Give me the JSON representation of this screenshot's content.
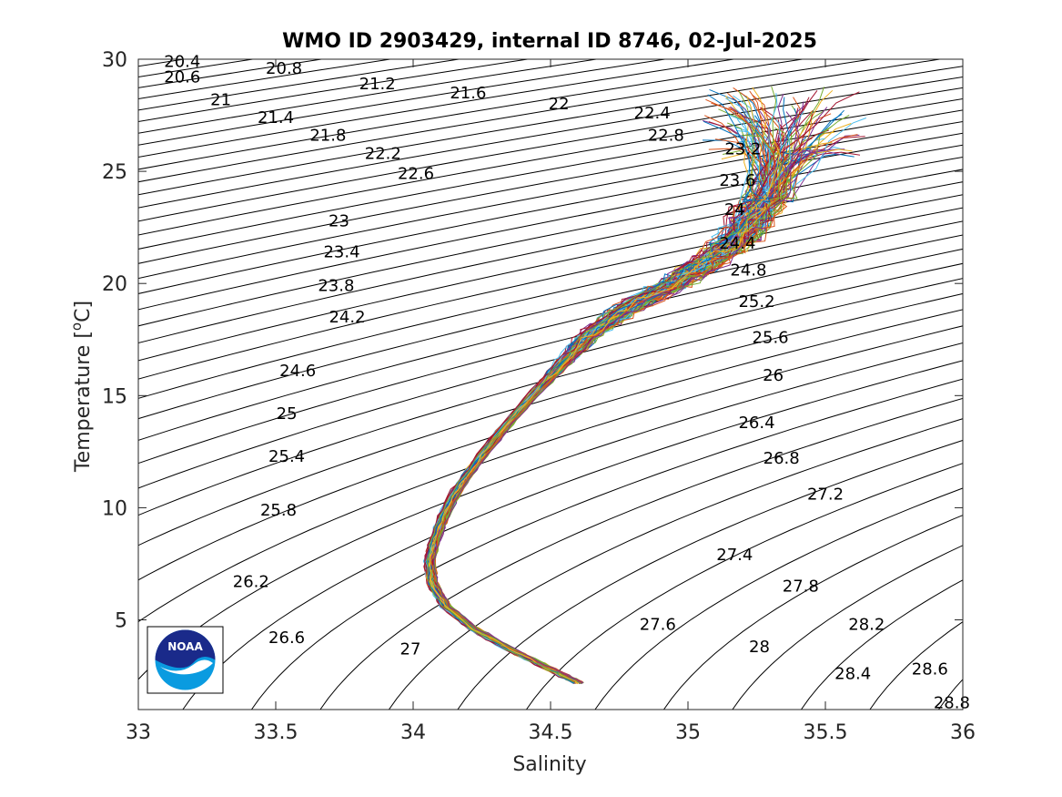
{
  "chart_data": {
    "type": "line",
    "title": "WMO ID 2903429, internal ID 8746, 02-Jul-2025",
    "xlabel": "Salinity",
    "ylabel_main": "Temperature [",
    "ylabel_sup": "o",
    "ylabel_end": "C]",
    "xlim": [
      33,
      36
    ],
    "ylim": [
      1,
      30
    ],
    "xticks": [
      "33",
      "33.5",
      "34",
      "34.5",
      "35",
      "35.5",
      "36"
    ],
    "yticks": [
      "5",
      "10",
      "15",
      "20",
      "25",
      "30"
    ],
    "isopycnal_labels": [
      {
        "text": "20.4",
        "s": 33.16,
        "t": 29.9
      },
      {
        "text": "20.6",
        "s": 33.16,
        "t": 29.2
      },
      {
        "text": "20.8",
        "s": 33.53,
        "t": 29.6
      },
      {
        "text": "21",
        "s": 33.3,
        "t": 28.2
      },
      {
        "text": "21.2",
        "s": 33.87,
        "t": 28.9
      },
      {
        "text": "21.4",
        "s": 33.5,
        "t": 27.4
      },
      {
        "text": "21.6",
        "s": 34.2,
        "t": 28.5
      },
      {
        "text": "21.8",
        "s": 33.69,
        "t": 26.6
      },
      {
        "text": "22",
        "s": 34.53,
        "t": 28.0
      },
      {
        "text": "22.2",
        "s": 33.89,
        "t": 25.8
      },
      {
        "text": "22.4",
        "s": 34.87,
        "t": 27.6
      },
      {
        "text": "22.6",
        "s": 34.01,
        "t": 24.9
      },
      {
        "text": "22.8",
        "s": 34.92,
        "t": 26.6
      },
      {
        "text": "23.2",
        "s": 35.2,
        "t": 26.0
      },
      {
        "text": "23",
        "s": 33.73,
        "t": 22.8
      },
      {
        "text": "23.6",
        "s": 35.18,
        "t": 24.6
      },
      {
        "text": "23.4",
        "s": 33.74,
        "t": 21.4
      },
      {
        "text": "24",
        "s": 35.17,
        "t": 23.3
      },
      {
        "text": "23.8",
        "s": 33.72,
        "t": 19.9
      },
      {
        "text": "24.4",
        "s": 35.18,
        "t": 21.8
      },
      {
        "text": "24.8",
        "s": 35.22,
        "t": 20.6
      },
      {
        "text": "24.2",
        "s": 33.76,
        "t": 18.5
      },
      {
        "text": "25.2",
        "s": 35.25,
        "t": 19.2
      },
      {
        "text": "25.6",
        "s": 35.3,
        "t": 17.6
      },
      {
        "text": "24.6",
        "s": 33.58,
        "t": 16.1
      },
      {
        "text": "26",
        "s": 35.31,
        "t": 15.9
      },
      {
        "text": "25",
        "s": 33.54,
        "t": 14.2
      },
      {
        "text": "26.4",
        "s": 35.25,
        "t": 13.8
      },
      {
        "text": "25.4",
        "s": 33.54,
        "t": 12.3
      },
      {
        "text": "26.8",
        "s": 35.34,
        "t": 12.2
      },
      {
        "text": "27.2",
        "s": 35.5,
        "t": 10.6
      },
      {
        "text": "25.8",
        "s": 33.51,
        "t": 9.9
      },
      {
        "text": "27.4",
        "s": 35.17,
        "t": 7.9
      },
      {
        "text": "27.8",
        "s": 35.41,
        "t": 6.5
      },
      {
        "text": "26.2",
        "s": 33.41,
        "t": 6.7
      },
      {
        "text": "28.2",
        "s": 35.65,
        "t": 4.8
      },
      {
        "text": "27.6",
        "s": 34.89,
        "t": 4.8
      },
      {
        "text": "26.6",
        "s": 33.54,
        "t": 4.2
      },
      {
        "text": "27",
        "s": 33.99,
        "t": 3.7
      },
      {
        "text": "28",
        "s": 35.26,
        "t": 3.8
      },
      {
        "text": "28.4",
        "s": 35.6,
        "t": 2.6
      },
      {
        "text": "28.6",
        "s": 35.88,
        "t": 2.8
      },
      {
        "text": "28.8",
        "s": 35.96,
        "t": 1.3
      }
    ],
    "profile_colors": [
      "#0072BD",
      "#D95319",
      "#EDB120",
      "#7E2F8E",
      "#77AC30",
      "#4DBEEE",
      "#A2142F"
    ],
    "mean_profile": {
      "s": [
        34.6,
        34.5,
        34.35,
        34.22,
        34.12,
        34.07,
        34.06,
        34.08,
        34.11,
        34.16,
        34.23,
        34.32,
        34.42,
        34.55,
        34.65,
        34.78,
        34.95,
        35.08,
        35.2,
        35.3,
        35.4
      ],
      "t": [
        2.2,
        2.8,
        3.7,
        4.6,
        5.6,
        6.6,
        7.6,
        8.6,
        9.6,
        10.8,
        12.0,
        13.4,
        14.8,
        16.5,
        17.8,
        18.9,
        20.0,
        21.0,
        22.2,
        24.0,
        27.0
      ]
    },
    "profile_count": 110
  },
  "logo": {
    "text": "NOAA",
    "name": "noaa-logo"
  }
}
